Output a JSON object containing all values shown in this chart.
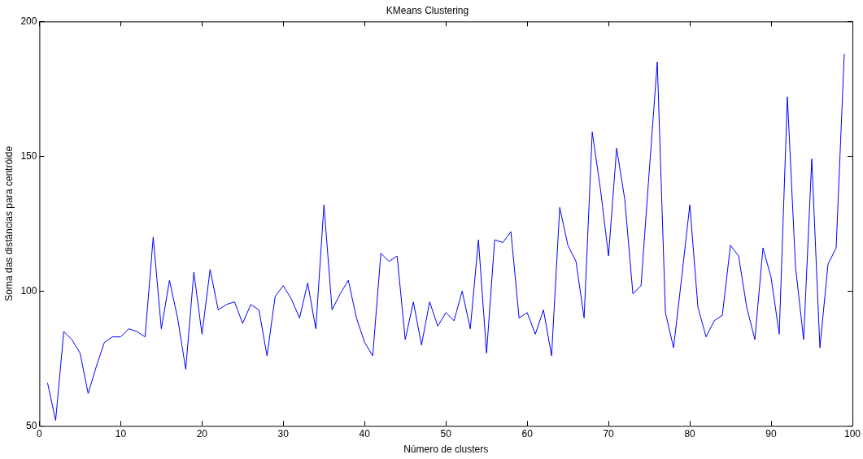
{
  "chart_data": {
    "type": "line",
    "title": "KMeans Clustering",
    "xlabel": "Número de clusters",
    "ylabel": "Soma das distâncias para centróide",
    "x": [
      1,
      2,
      3,
      4,
      5,
      6,
      7,
      8,
      9,
      10,
      11,
      12,
      13,
      14,
      15,
      16,
      17,
      18,
      19,
      20,
      21,
      22,
      23,
      24,
      25,
      26,
      27,
      28,
      29,
      30,
      31,
      32,
      33,
      34,
      35,
      36,
      37,
      38,
      39,
      40,
      41,
      42,
      43,
      44,
      45,
      46,
      47,
      48,
      49,
      50,
      51,
      52,
      53,
      54,
      55,
      56,
      57,
      58,
      59,
      60,
      61,
      62,
      63,
      64,
      65,
      66,
      67,
      68,
      69,
      70,
      71,
      72,
      73,
      74,
      75,
      76,
      77,
      78,
      79,
      80,
      81,
      82,
      83,
      84,
      85,
      86,
      87,
      88,
      89,
      90,
      91,
      92,
      93,
      94,
      95,
      96,
      97,
      98,
      99
    ],
    "series": [
      {
        "color": "#0000ff",
        "values": [
          66,
          52,
          85,
          82,
          77,
          62,
          72,
          81,
          83,
          83,
          86,
          85,
          83,
          120,
          86,
          104,
          90,
          71,
          107,
          84,
          108,
          93,
          95,
          96,
          88,
          95,
          93,
          76,
          98,
          102,
          97,
          90,
          103,
          86,
          132,
          93,
          99,
          104,
          90,
          81,
          76,
          114,
          111,
          113,
          82,
          96,
          80,
          96,
          87,
          92,
          89,
          100,
          86,
          119,
          77,
          119,
          118,
          122,
          90,
          92,
          84,
          93,
          76,
          131,
          117,
          111,
          90,
          159,
          138,
          113,
          153,
          134,
          99,
          102,
          144,
          185,
          92,
          79,
          105,
          132,
          94,
          83,
          89,
          91,
          117,
          113,
          94,
          82,
          116,
          105,
          84,
          172,
          109,
          82,
          149,
          79,
          110,
          116,
          188
        ]
      }
    ],
    "xlim": [
      0,
      100
    ],
    "xticks": [
      0,
      10,
      20,
      30,
      40,
      50,
      60,
      70,
      80,
      90,
      100
    ],
    "ylim": [
      50,
      200
    ],
    "yticks": [
      50,
      100,
      150,
      200
    ],
    "grid": false,
    "legend": false,
    "marker": "none",
    "line_style": "solid"
  }
}
